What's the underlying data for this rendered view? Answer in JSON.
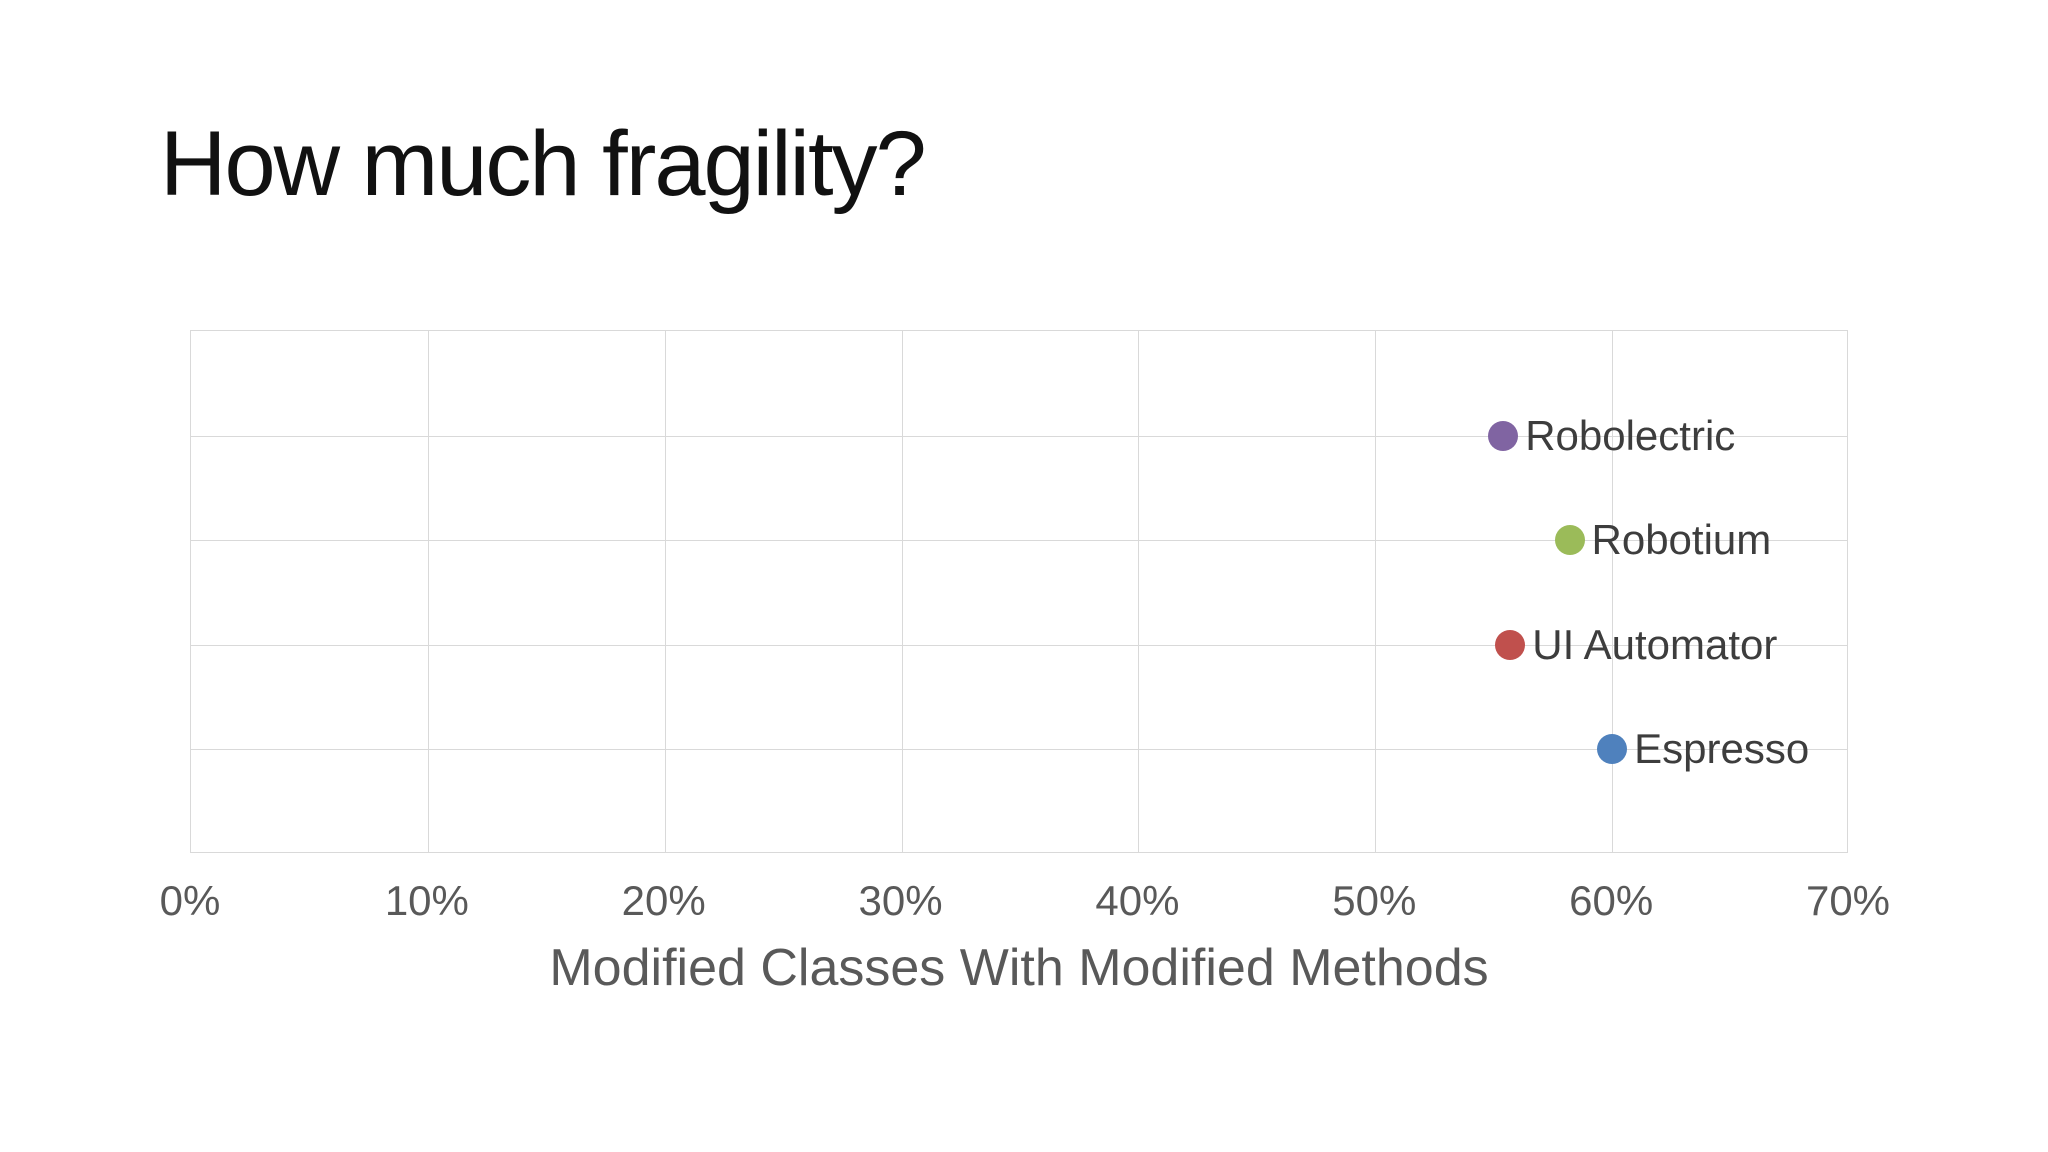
{
  "slide": {
    "title": "How much fragility?"
  },
  "chart_data": {
    "type": "scatter",
    "title": "How much fragility?",
    "xlabel": "Modified Classes With Modified Methods",
    "ylabel": "",
    "xlim": [
      0,
      70
    ],
    "ylim": [
      0,
      5
    ],
    "grid": true,
    "legend_position": "none",
    "gridline_color": "#d9d9d9",
    "plot_border_color": "#d9d9d9",
    "x_ticks": [
      {
        "label": "0%",
        "value": 0
      },
      {
        "label": "10%",
        "value": 10
      },
      {
        "label": "20%",
        "value": 20
      },
      {
        "label": "30%",
        "value": 30
      },
      {
        "label": "40%",
        "value": 40
      },
      {
        "label": "50%",
        "value": 50
      },
      {
        "label": "60%",
        "value": 60
      },
      {
        "label": "70%",
        "value": 70
      }
    ],
    "y_gridline_values": [
      1,
      2,
      3,
      4
    ],
    "points": [
      {
        "label": "Robolectric",
        "x": 55.4,
        "y": 4,
        "color": "#8064A2"
      },
      {
        "label": "Robotium",
        "x": 58.2,
        "y": 3,
        "color": "#9BBB59"
      },
      {
        "label": "UI Automator",
        "x": 55.7,
        "y": 2,
        "color": "#C0504D"
      },
      {
        "label": "Espresso",
        "x": 60.0,
        "y": 1,
        "color": "#4F81BD"
      }
    ]
  }
}
